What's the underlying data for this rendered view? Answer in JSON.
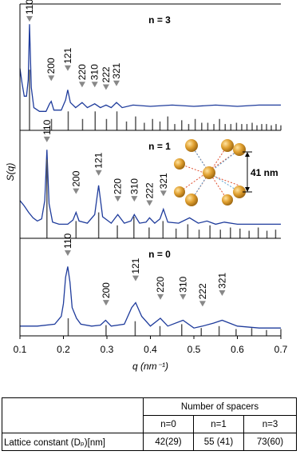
{
  "chart_data": [
    {
      "type": "line",
      "title": "n = 3",
      "color": "#1f3c9c",
      "xlim": [
        0.1,
        0.7
      ],
      "ylim": [
        0,
        10
      ],
      "x": [
        0.1,
        0.105,
        0.11,
        0.115,
        0.119,
        0.122,
        0.126,
        0.132,
        0.145,
        0.16,
        0.168,
        0.172,
        0.178,
        0.195,
        0.205,
        0.21,
        0.216,
        0.228,
        0.243,
        0.255,
        0.272,
        0.285,
        0.298,
        0.31,
        0.322,
        0.335,
        0.36,
        0.4,
        0.45,
        0.5,
        0.55,
        0.6,
        0.65,
        0.7
      ],
      "values": [
        4.9,
        3.7,
        2.7,
        2.7,
        4.0,
        8.4,
        3.4,
        1.8,
        1.5,
        1.5,
        2.1,
        2.3,
        1.6,
        1.6,
        2.4,
        3.2,
        2.2,
        1.8,
        2.2,
        1.8,
        2.1,
        1.8,
        2.0,
        1.8,
        2.2,
        1.8,
        2.0,
        1.9,
        2.0,
        1.9,
        2.0,
        1.9,
        2.0,
        2.0
      ],
      "reflections": {
        "color": "#555555",
        "x": [
          0.122,
          0.1725,
          0.211,
          0.244,
          0.273,
          0.299,
          0.323,
          0.345,
          0.366,
          0.386,
          0.405,
          0.422,
          0.44,
          0.456,
          0.472,
          0.488,
          0.503,
          0.518,
          0.532,
          0.546,
          0.559,
          0.572,
          0.585,
          0.598,
          0.61,
          0.622,
          0.634,
          0.645,
          0.656,
          0.667,
          0.678,
          0.689,
          0.7
        ],
        "heights": [
          4.8,
          0.9,
          1.5,
          0.9,
          1.5,
          0.9,
          1.5,
          0.7,
          1.1,
          0.6,
          0.9,
          0.7,
          1.1,
          0.5,
          0.8,
          0.5,
          0.9,
          0.6,
          0.6,
          0.5,
          0.9,
          0.5,
          0.5,
          0.6,
          0.5,
          0.5,
          0.6,
          0.4,
          0.5,
          0.5,
          0.4,
          0.5,
          0.4
        ]
      },
      "annotations": [
        {
          "text": "110",
          "x": 0.122,
          "y": 8.6
        },
        {
          "text": "200",
          "x": 0.172,
          "y": 3.9
        },
        {
          "text": "121",
          "x": 0.21,
          "y": 4.7
        },
        {
          "text": "220",
          "x": 0.243,
          "y": 3.4
        },
        {
          "text": "310",
          "x": 0.272,
          "y": 3.4
        },
        {
          "text": "222",
          "x": 0.298,
          "y": 3.2
        },
        {
          "text": "321",
          "x": 0.322,
          "y": 3.5
        }
      ]
    },
    {
      "type": "line",
      "title": "n = 1",
      "color": "#1f3c9c",
      "xlim": [
        0.1,
        0.7
      ],
      "ylim": [
        0,
        10
      ],
      "ylabel": "S(q)",
      "inset_label": "41 nm",
      "x": [
        0.1,
        0.11,
        0.12,
        0.13,
        0.14,
        0.15,
        0.157,
        0.162,
        0.167,
        0.175,
        0.19,
        0.21,
        0.222,
        0.229,
        0.236,
        0.255,
        0.272,
        0.281,
        0.29,
        0.31,
        0.325,
        0.34,
        0.355,
        0.363,
        0.375,
        0.39,
        0.398,
        0.41,
        0.422,
        0.43,
        0.44,
        0.465,
        0.49,
        0.51,
        0.53,
        0.55,
        0.57,
        0.6,
        0.65,
        0.7
      ],
      "values": [
        3.5,
        3.0,
        2.4,
        1.9,
        1.6,
        1.8,
        3.5,
        8.2,
        3.2,
        1.5,
        1.3,
        1.3,
        1.7,
        2.4,
        1.6,
        1.4,
        2.2,
        4.9,
        2.0,
        1.4,
        2.2,
        1.4,
        1.6,
        2.2,
        1.4,
        1.5,
        1.9,
        1.4,
        1.8,
        2.7,
        1.5,
        1.4,
        1.9,
        1.4,
        1.6,
        1.3,
        1.5,
        1.3,
        1.3,
        1.3
      ],
      "reflections": {
        "color": "#555555",
        "x": [
          0.162,
          0.229,
          0.281,
          0.324,
          0.362,
          0.397,
          0.429,
          0.459,
          0.486,
          0.512,
          0.537,
          0.561,
          0.584,
          0.606,
          0.627,
          0.648,
          0.668,
          0.688
        ],
        "heights": [
          7.3,
          1.6,
          2.4,
          1.2,
          2.0,
          1.0,
          1.6,
          0.9,
          1.3,
          0.8,
          1.2,
          0.8,
          1.0,
          0.9,
          0.7,
          1.0,
          0.7,
          0.8
        ]
      },
      "annotations": [
        {
          "text": "110",
          "x": 0.162,
          "y": 8.9
        },
        {
          "text": "200",
          "x": 0.229,
          "y": 4.1
        },
        {
          "text": "121",
          "x": 0.281,
          "y": 5.8
        },
        {
          "text": "220",
          "x": 0.325,
          "y": 3.4
        },
        {
          "text": "310",
          "x": 0.363,
          "y": 3.4
        },
        {
          "text": "222",
          "x": 0.398,
          "y": 3.0
        },
        {
          "text": "321",
          "x": 0.43,
          "y": 3.9
        }
      ]
    },
    {
      "type": "line",
      "title": "n = 0",
      "color": "#1f3c9c",
      "xlim": [
        0.1,
        0.7
      ],
      "ylim": [
        0,
        10
      ],
      "xlabel": "q (nm⁻¹)",
      "xticks": [
        0.1,
        0.2,
        0.3,
        0.4,
        0.5,
        0.6,
        0.7
      ],
      "x": [
        0.1,
        0.14,
        0.18,
        0.195,
        0.2,
        0.205,
        0.21,
        0.215,
        0.22,
        0.23,
        0.24,
        0.265,
        0.285,
        0.297,
        0.31,
        0.34,
        0.357,
        0.366,
        0.38,
        0.4,
        0.423,
        0.44,
        0.475,
        0.5,
        0.52,
        0.545,
        0.565,
        0.6,
        0.65,
        0.7
      ],
      "values": [
        1.0,
        1.0,
        1.2,
        2.0,
        3.3,
        6.0,
        7.1,
        5.5,
        2.9,
        1.8,
        1.2,
        1.0,
        1.1,
        1.6,
        1.0,
        1.2,
        2.9,
        3.4,
        2.0,
        1.0,
        1.8,
        1.0,
        1.6,
        0.8,
        1.0,
        1.3,
        1.6,
        1.0,
        0.8,
        0.8
      ],
      "reflections": {
        "color": "#555555",
        "x": [
          0.211,
          0.298,
          0.365,
          0.422,
          0.472,
          0.517,
          0.558,
          0.597,
          0.633,
          0.667,
          0.7
        ],
        "heights": [
          1.8,
          1.1,
          1.5,
          1.0,
          1.2,
          0.8,
          1.0,
          0.7,
          0.8,
          0.6,
          0.7
        ]
      },
      "annotations": [
        {
          "text": "110",
          "x": 0.21,
          "y": 8.2
        },
        {
          "text": "200",
          "x": 0.298,
          "y": 3.1
        },
        {
          "text": "121",
          "x": 0.366,
          "y": 5.6
        },
        {
          "text": "220",
          "x": 0.423,
          "y": 3.7
        },
        {
          "text": "310",
          "x": 0.475,
          "y": 3.7
        },
        {
          "text": "222",
          "x": 0.52,
          "y": 3.0
        },
        {
          "text": "321",
          "x": 0.565,
          "y": 4.1
        }
      ]
    }
  ],
  "table": {
    "header": "Number of spacers",
    "columns": [
      "n=0",
      "n=1",
      "n=3"
    ],
    "rows": [
      [
        "Lattice constant (Dₚ)[nm]",
        "42(29)",
        "55 (41)",
        "73(60)"
      ]
    ]
  }
}
